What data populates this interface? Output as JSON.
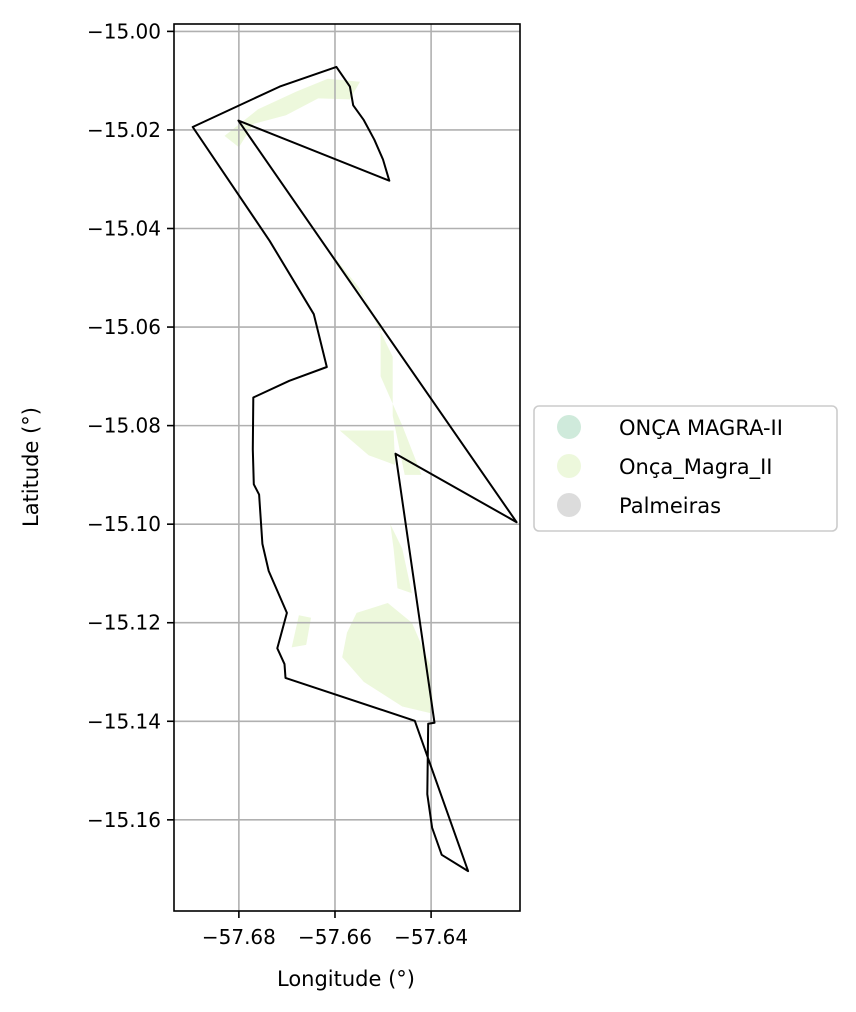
{
  "chart_data": {
    "type": "map",
    "xlabel": "Longitude (°)",
    "ylabel": "Latitude (°)",
    "xlim": [
      -57.6935,
      -57.6215
    ],
    "ylim": [
      -15.1785,
      -14.9985
    ],
    "xticks": [
      -57.68,
      -57.66,
      -57.64
    ],
    "xtick_labels": [
      "−57.68",
      "−57.66",
      "−57.64"
    ],
    "yticks": [
      -15.0,
      -15.02,
      -15.04,
      -15.06,
      -15.08,
      -15.1,
      -15.12,
      -15.14,
      -15.16
    ],
    "ytick_labels": [
      "−15.00",
      "−15.02",
      "−15.04",
      "−15.06",
      "−15.08",
      "−15.10",
      "−15.12",
      "−15.14",
      "−15.16"
    ],
    "grid": true,
    "legend_position": "right-center",
    "legend": [
      {
        "label": "ONÇA MAGRA-II",
        "color": "#cfeadb"
      },
      {
        "label": "Onça_Magra_II",
        "color": "#edf8dc"
      },
      {
        "label": "Palmeiras",
        "color": "#dcdcdc"
      }
    ],
    "boundary_color": "#000000",
    "fill_color": "#edf8dc",
    "boundary": [
      [
        -57.6597,
        -15.0072
      ],
      [
        -57.6569,
        -15.0112
      ],
      [
        -57.6562,
        -15.015
      ],
      [
        -57.654,
        -15.018
      ],
      [
        -57.6518,
        -15.022
      ],
      [
        -57.65,
        -15.026
      ],
      [
        -57.6487,
        -15.0303
      ],
      [
        -57.6801,
        -15.0181
      ],
      [
        -57.6222,
        -15.0996
      ],
      [
        -57.6474,
        -15.0857
      ],
      [
        -57.6393,
        -15.1403
      ],
      [
        -57.6406,
        -15.1405
      ],
      [
        -57.6408,
        -15.1548
      ],
      [
        -57.6398,
        -15.1616
      ],
      [
        -57.6378,
        -15.1671
      ],
      [
        -57.6323,
        -15.1704
      ],
      [
        -57.6434,
        -15.1399
      ],
      [
        -57.6703,
        -15.1312
      ],
      [
        -57.6705,
        -15.1284
      ],
      [
        -57.672,
        -15.1252
      ],
      [
        -57.67,
        -15.118
      ],
      [
        -57.6738,
        -15.1095
      ],
      [
        -57.6751,
        -15.104
      ],
      [
        -57.6758,
        -15.094
      ],
      [
        -57.6769,
        -15.0919
      ],
      [
        -57.6771,
        -15.0848
      ],
      [
        -57.677,
        -15.0743
      ],
      [
        -57.6695,
        -15.0709
      ],
      [
        -57.6617,
        -15.0681
      ],
      [
        -57.6644,
        -15.0574
      ],
      [
        -57.6736,
        -15.0425
      ],
      [
        -57.6896,
        -15.0194
      ],
      [
        -57.6715,
        -15.0112
      ],
      [
        -57.6597,
        -15.0072
      ]
    ],
    "filled_regions": [
      [
        [
          -57.6615,
          -15.0096
        ],
        [
          -57.6548,
          -15.0102
        ],
        [
          -57.6569,
          -15.0138
        ],
        [
          -57.6635,
          -15.0136
        ],
        [
          -57.6702,
          -15.017
        ],
        [
          -57.677,
          -15.0188
        ],
        [
          -57.68,
          -15.0235
        ],
        [
          -57.683,
          -15.0212
        ],
        [
          -57.676,
          -15.0158
        ],
        [
          -57.668,
          -15.0122
        ]
      ],
      [
        [
          -57.6618,
          -15.0438
        ],
        [
          -57.655,
          -15.052
        ],
        [
          -57.6505,
          -15.06
        ],
        [
          -57.6505,
          -15.07
        ],
        [
          -57.646,
          -15.08
        ],
        [
          -57.642,
          -15.09
        ],
        [
          -57.6455,
          -15.09
        ],
        [
          -57.648,
          -15.078
        ],
        [
          -57.648,
          -15.066
        ],
        [
          -57.654,
          -15.054
        ],
        [
          -57.66,
          -15.047
        ]
      ],
      [
        [
          -57.659,
          -15.081
        ],
        [
          -57.653,
          -15.086
        ],
        [
          -57.6475,
          -15.088
        ],
        [
          -57.6478,
          -15.081
        ]
      ],
      [
        [
          -57.6485,
          -15.1
        ],
        [
          -57.646,
          -15.105
        ],
        [
          -57.644,
          -15.114
        ],
        [
          -57.647,
          -15.113
        ],
        [
          -57.6478,
          -15.105
        ]
      ],
      [
        [
          -57.6555,
          -15.118
        ],
        [
          -57.649,
          -15.116
        ],
        [
          -57.644,
          -15.12
        ],
        [
          -57.64,
          -15.129
        ],
        [
          -57.6395,
          -15.1385
        ],
        [
          -57.646,
          -15.137
        ],
        [
          -57.654,
          -15.132
        ],
        [
          -57.6585,
          -15.127
        ],
        [
          -57.6575,
          -15.122
        ]
      ],
      [
        [
          -57.6675,
          -15.1185
        ],
        [
          -57.665,
          -15.119
        ],
        [
          -57.666,
          -15.1245
        ],
        [
          -57.669,
          -15.125
        ]
      ]
    ]
  }
}
